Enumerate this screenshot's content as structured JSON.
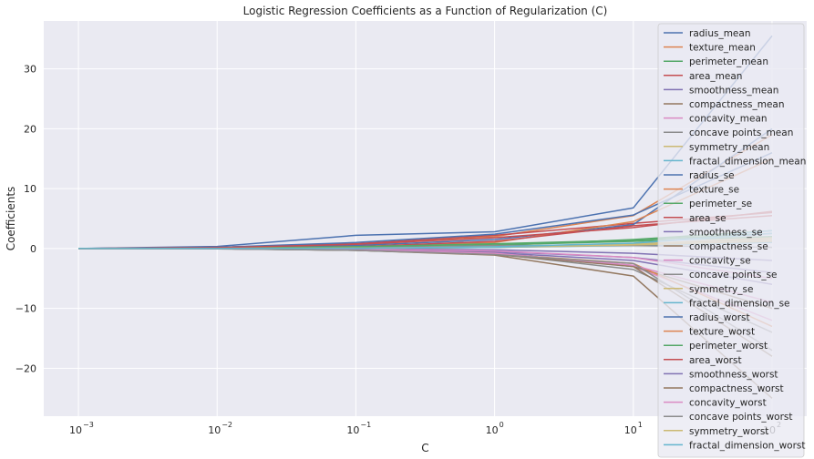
{
  "chart_data": {
    "type": "line",
    "title": "Logistic Regression Coefficients as a Function of Regularization (C)",
    "xlabel": "C",
    "ylabel": "Coefficients",
    "xscale": "log",
    "x": [
      0.001,
      0.01,
      0.1,
      1,
      10,
      100
    ],
    "x_tick_bases": [
      "10",
      "10",
      "10",
      "10",
      "10",
      "10"
    ],
    "x_tick_exponents": [
      "−3",
      "−2",
      "−1",
      "0",
      "1",
      "2"
    ],
    "xlim_exponent": [
      -3.25,
      2.25
    ],
    "ylim": [
      -28,
      38
    ],
    "yticks": [
      -20,
      -10,
      0,
      10,
      20,
      30
    ],
    "ytick_labels": [
      "−20",
      "−10",
      "0",
      "10",
      "20",
      "30"
    ],
    "grid": true,
    "legend_position": "upper-right",
    "colors": [
      "#4c72b0",
      "#dd8452",
      "#55a868",
      "#c44e52",
      "#8172b3",
      "#937860",
      "#da8bc3",
      "#8c8c8c",
      "#ccb974",
      "#64b5cd"
    ],
    "series": [
      {
        "name": "radius_mean",
        "values": [
          0.0,
          0.35,
          2.2,
          2.8,
          6.8,
          35.5
        ]
      },
      {
        "name": "texture_mean",
        "values": [
          0.0,
          0.1,
          0.6,
          2.0,
          5.5,
          19.0
        ]
      },
      {
        "name": "perimeter_mean",
        "values": [
          0.0,
          0.05,
          0.2,
          0.6,
          1.2,
          2.0
        ]
      },
      {
        "name": "area_mean",
        "values": [
          0.0,
          0.2,
          0.8,
          2.2,
          4.2,
          6.0
        ]
      },
      {
        "name": "smoothness_mean",
        "values": [
          0.0,
          -0.02,
          -0.1,
          -0.5,
          -1.5,
          -4.0
        ]
      },
      {
        "name": "compactness_mean",
        "values": [
          0.0,
          -0.05,
          -0.3,
          -1.1,
          -4.6,
          -25.0
        ]
      },
      {
        "name": "concavity_mean",
        "values": [
          0.0,
          -0.03,
          -0.2,
          -0.8,
          -3.0,
          -12.0
        ]
      },
      {
        "name": "concave points_mean",
        "values": [
          0.0,
          -0.04,
          -0.3,
          -0.9,
          -3.5,
          -14.0
        ]
      },
      {
        "name": "symmetry_mean",
        "values": [
          0.0,
          0.02,
          0.1,
          0.3,
          0.8,
          1.5
        ]
      },
      {
        "name": "fractal_dimension_mean",
        "values": [
          0.0,
          0.01,
          0.05,
          0.2,
          0.5,
          1.0
        ]
      },
      {
        "name": "radius_se",
        "values": [
          0.0,
          0.1,
          0.5,
          1.5,
          4.0,
          20.0
        ]
      },
      {
        "name": "texture_se",
        "values": [
          0.0,
          0.05,
          0.3,
          1.0,
          4.5,
          15.0
        ]
      },
      {
        "name": "perimeter_se",
        "values": [
          0.0,
          0.03,
          0.1,
          0.5,
          1.5,
          3.0
        ]
      },
      {
        "name": "area_se",
        "values": [
          0.0,
          0.05,
          0.3,
          1.2,
          3.8,
          5.5
        ]
      },
      {
        "name": "smoothness_se",
        "values": [
          0.0,
          -0.01,
          -0.05,
          -0.2,
          -0.8,
          -2.0
        ]
      },
      {
        "name": "compactness_se",
        "values": [
          0.0,
          -0.02,
          -0.15,
          -0.7,
          -3.0,
          -10.0
        ]
      },
      {
        "name": "concavity_se",
        "values": [
          0.0,
          -0.01,
          -0.08,
          -0.4,
          -1.5,
          -5.0
        ]
      },
      {
        "name": "concave points_se",
        "values": [
          0.0,
          0.01,
          0.1,
          0.5,
          0.5,
          0.2
        ]
      },
      {
        "name": "symmetry_se",
        "values": [
          0.0,
          0.01,
          0.05,
          0.2,
          0.6,
          1.2
        ]
      },
      {
        "name": "fractal_dimension_se",
        "values": [
          0.0,
          0.01,
          0.05,
          0.2,
          0.8,
          3.0
        ]
      },
      {
        "name": "radius_worst",
        "values": [
          0.0,
          0.2,
          1.0,
          2.4,
          5.6,
          16.0
        ]
      },
      {
        "name": "texture_worst",
        "values": [
          0.0,
          -0.03,
          -0.2,
          -0.9,
          -2.5,
          -13.0
        ]
      },
      {
        "name": "perimeter_worst",
        "values": [
          0.0,
          0.05,
          0.3,
          0.8,
          1.4,
          2.5
        ]
      },
      {
        "name": "area_worst",
        "values": [
          0.0,
          0.15,
          0.7,
          1.8,
          3.5,
          6.2
        ]
      },
      {
        "name": "smoothness_worst",
        "values": [
          0.0,
          -0.03,
          -0.2,
          -0.7,
          -2.0,
          -6.0
        ]
      },
      {
        "name": "compactness_worst",
        "values": [
          0.0,
          -0.04,
          -0.3,
          -1.0,
          -3.0,
          -18.0
        ]
      },
      {
        "name": "concavity_worst",
        "values": [
          0.0,
          -0.03,
          -0.25,
          -0.8,
          -2.8,
          -9.0
        ]
      },
      {
        "name": "concave points_worst",
        "values": [
          0.0,
          -0.05,
          -0.3,
          -1.0,
          -2.5,
          -17.0
        ]
      },
      {
        "name": "symmetry_worst",
        "values": [
          0.0,
          0.02,
          0.08,
          0.3,
          0.7,
          1.8
        ]
      },
      {
        "name": "fractal_dimension_worst",
        "values": [
          0.0,
          0.01,
          0.05,
          0.3,
          0.9,
          2.5
        ]
      }
    ]
  }
}
